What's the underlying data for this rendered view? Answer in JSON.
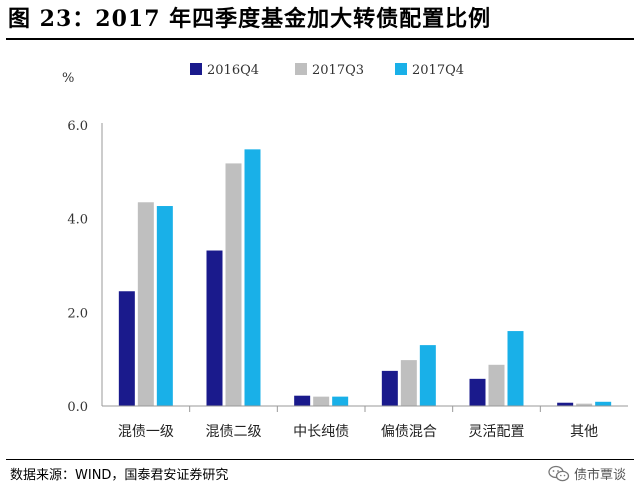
{
  "title": "图 23：2017 年四季度基金加大转债配置比例",
  "source": "数据来源：WIND，国泰君安证券研究",
  "watermark": {
    "text": "债市覃谈",
    "icon": "wechat-icon"
  },
  "chart_data": {
    "type": "bar",
    "title": "",
    "xlabel": "",
    "ylabel": "%",
    "ylim": [
      0,
      6
    ],
    "yticks": [
      "0.0",
      "2.0",
      "4.0",
      "6.0"
    ],
    "grid": false,
    "legend_position": "top",
    "categories": [
      "混债一级",
      "混债二级",
      "中长纯债",
      "偏债混合",
      "灵活配置",
      "其他"
    ],
    "series": [
      {
        "name": "2016Q4",
        "color": "#1a1a8c",
        "values": [
          2.45,
          3.32,
          0.22,
          0.75,
          0.58,
          0.07
        ]
      },
      {
        "name": "2017Q3",
        "color": "#bfbfbf",
        "values": [
          4.35,
          5.18,
          0.2,
          0.98,
          0.88,
          0.05
        ]
      },
      {
        "name": "2017Q4",
        "color": "#19b0e8",
        "values": [
          4.27,
          5.48,
          0.2,
          1.3,
          1.6,
          0.09
        ]
      }
    ]
  }
}
